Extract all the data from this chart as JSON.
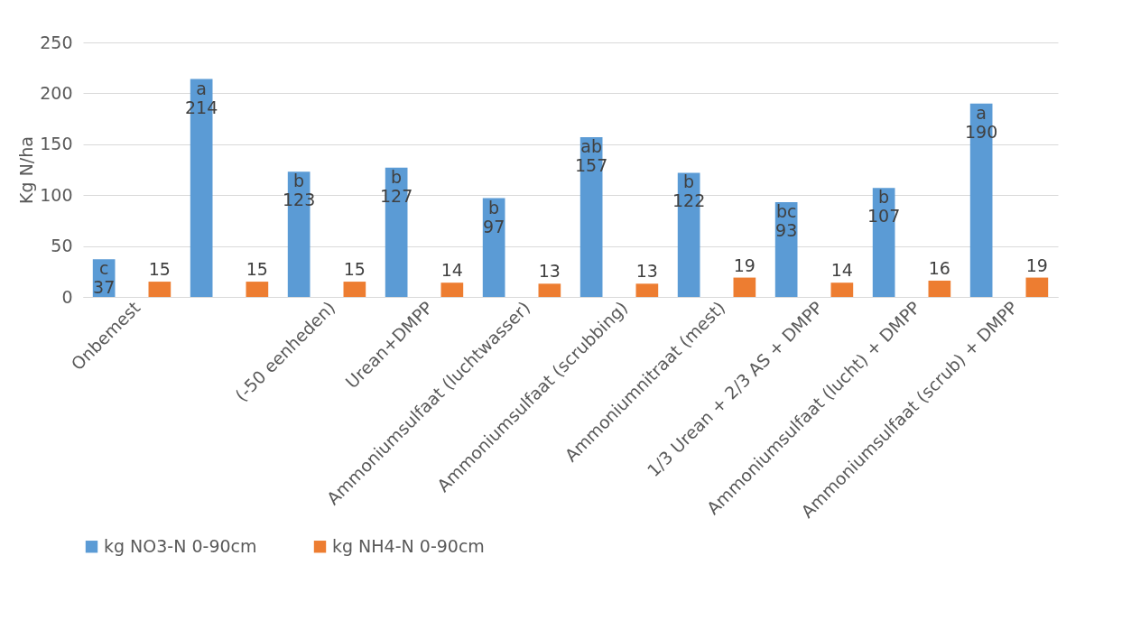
{
  "chart_data": {
    "type": "bar",
    "ylabel": "Kg N/ha",
    "categories": [
      "Onbemest",
      null,
      "(-50 eenheden)",
      "Urean+DMPP",
      "Ammoniumsulfaat (luchtwasser)",
      "Ammoniumsulfaat (scrubbing)",
      "Ammoniumnitraat (mest)",
      "1/3 Urean + 2/3 AS + DMPP",
      "Ammoniumsulfaat (lucht) + DMPP",
      "Ammoniumsulfaat (scrub) + DMPP"
    ],
    "series": [
      {
        "name": "kg NO3-N 0-90cm",
        "color": "#5b9bd5",
        "values": [
          37,
          214,
          123,
          127,
          97,
          157,
          122,
          93,
          107,
          190
        ]
      },
      {
        "name": "kg NH4-N 0-90cm",
        "color": "#ed7d31",
        "values": [
          15,
          15,
          15,
          14,
          13,
          13,
          19,
          14,
          16,
          19
        ]
      }
    ],
    "data_labels": true,
    "annotations": [
      "c",
      "a",
      "b",
      "b",
      "b",
      "ab",
      "b",
      "bc",
      "b",
      "a"
    ],
    "ylim": [
      0,
      250
    ],
    "yticks": [
      0,
      50,
      100,
      150,
      200,
      250
    ],
    "grid": "y",
    "legend": "bottom"
  }
}
